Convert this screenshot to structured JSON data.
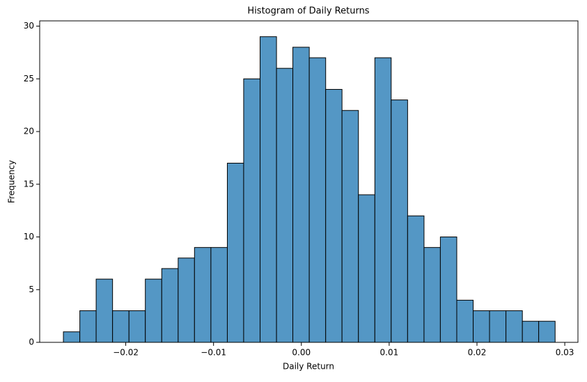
{
  "chart_data": {
    "type": "histogram",
    "title": "Histogram of Daily Returns",
    "x_label": "Daily Return",
    "y_label": "Frequency",
    "bins": [
      -0.0271,
      -0.02523,
      -0.02337,
      -0.0215,
      -0.01963,
      -0.01777,
      -0.0159,
      -0.01403,
      -0.01217,
      -0.0103,
      -0.00843,
      -0.00657,
      -0.0047,
      -0.00283,
      -0.00097,
      0.0009,
      0.00277,
      0.00463,
      0.0065,
      0.00837,
      0.01023,
      0.0121,
      0.01397,
      0.01583,
      0.0177,
      0.01957,
      0.02143,
      0.0233,
      0.02517,
      0.02703,
      0.0289
    ],
    "values": [
      1,
      3,
      6,
      3,
      3,
      6,
      7,
      8,
      9,
      9,
      17,
      25,
      29,
      26,
      28,
      27,
      24,
      22,
      14,
      27,
      23,
      12,
      9,
      10,
      4,
      3,
      3,
      3,
      2,
      2
    ],
    "color": "#5497c5",
    "edgecolor": "#000000",
    "xlim": [
      -0.0298,
      0.0315
    ],
    "xticks": [
      {
        "value": -0.02,
        "label": "−0.02"
      },
      {
        "value": -0.01,
        "label": "−0.01"
      },
      {
        "value": 0,
        "label": "0.00"
      },
      0.01,
      0.02,
      0.03
    ],
    "ylim": [
      0,
      30.5
    ],
    "yticks": [
      0,
      5,
      10,
      15,
      20,
      25,
      30
    ]
  }
}
